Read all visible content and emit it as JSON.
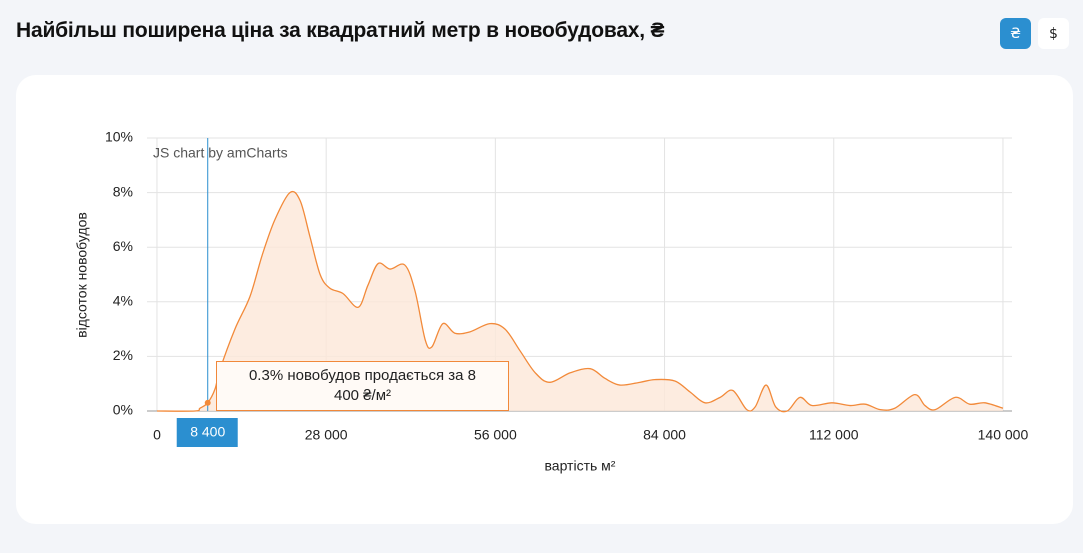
{
  "header": {
    "title": "Найбільш поширена ціна за квадратний метр в новобудовах, ₴",
    "buttons": [
      "₴",
      "$"
    ]
  },
  "chart_data": {
    "type": "area",
    "credit": "JS chart by amCharts",
    "x_label": "вартість м²",
    "y_label": "відсоток новобудов",
    "color": "#f28a3a",
    "fill": "#fde7d8",
    "grid": true,
    "x": [
      0,
      6300,
      7100,
      8400,
      9600,
      10400,
      12900,
      15400,
      17400,
      19500,
      22000,
      23700,
      25300,
      27000,
      28600,
      30800,
      33300,
      34900,
      36600,
      38600,
      41000,
      42700,
      44400,
      45500,
      47300,
      49300,
      51800,
      55100,
      57600,
      60100,
      62600,
      65000,
      68400,
      71700,
      74100,
      76600,
      79900,
      82400,
      85700,
      88200,
      90700,
      93200,
      95300,
      97600,
      99000,
      100800,
      102400,
      104300,
      106400,
      108400,
      111700,
      114700,
      117200,
      119700,
      122100,
      125400,
      127100,
      128800,
      132100,
      134500,
      137000,
      140000
    ],
    "values": [
      0,
      0,
      0.1,
      0.3,
      0.8,
      1.5,
      3.0,
      4.2,
      5.7,
      7.0,
      8.0,
      7.7,
      6.4,
      5.0,
      4.5,
      4.3,
      3.8,
      4.6,
      5.4,
      5.2,
      5.35,
      4.4,
      2.6,
      2.35,
      3.2,
      2.85,
      2.9,
      3.2,
      3.0,
      2.2,
      1.4,
      1.05,
      1.4,
      1.55,
      1.2,
      0.95,
      1.05,
      1.15,
      1.1,
      0.7,
      0.3,
      0.5,
      0.75,
      0.05,
      0.15,
      0.95,
      0.15,
      0,
      0.5,
      0.2,
      0.3,
      0.2,
      0.25,
      0.05,
      0.1,
      0.6,
      0.2,
      0.05,
      0.5,
      0.25,
      0.3,
      0.1
    ],
    "xlim": [
      -1650,
      141500
    ],
    "ylim": [
      0,
      10
    ],
    "xticks": [
      0,
      {
        "value": 28000,
        "label": "28 000"
      },
      {
        "value": 56000,
        "label": "56 000"
      },
      {
        "value": 84000,
        "label": "84 000"
      },
      {
        "value": 112000,
        "label": "112 000"
      },
      {
        "value": 140000,
        "label": "140 000"
      }
    ],
    "yticks": [
      {
        "value": 0,
        "label": "0%"
      },
      {
        "value": 2,
        "label": "2%"
      },
      {
        "value": 4,
        "label": "4%"
      },
      {
        "value": 6,
        "label": "6%"
      },
      {
        "value": 8,
        "label": "8%"
      },
      {
        "value": 10,
        "label": "10%"
      }
    ],
    "cursor": {
      "x": {
        "value": 8400,
        "label": "8 400"
      },
      "value": 0.3,
      "tooltip": "0.3% новобудов продається за 8 400 ₴/м²",
      "color": "#2b8fd0"
    }
  }
}
